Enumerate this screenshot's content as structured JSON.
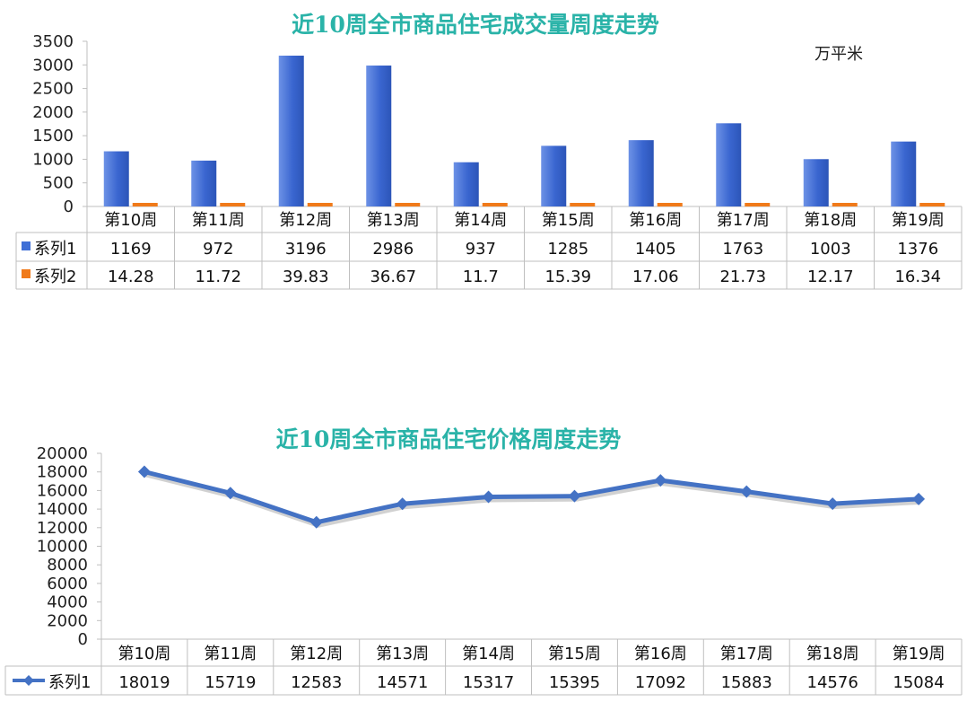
{
  "chart_data": [
    {
      "type": "bar",
      "title": "近10周全市商品住宅成交量周度走势",
      "unit": "万平米",
      "categories": [
        "第10周",
        "第11周",
        "第12周",
        "第13周",
        "第14周",
        "第15周",
        "第16周",
        "第17周",
        "第18周",
        "第19周"
      ],
      "yticks": [
        "0",
        "500",
        "1000",
        "1500",
        "2000",
        "2500",
        "3000",
        "3500"
      ],
      "ylim": [
        0,
        3500
      ],
      "series": [
        {
          "name": "系列1",
          "color": "#3f6fd6",
          "values": [
            1169,
            972,
            3196,
            2986,
            937,
            1285,
            1405,
            1763,
            1003,
            1376
          ],
          "labels": [
            "1169",
            "972",
            "3196",
            "2986",
            "937",
            "1285",
            "1405",
            "1763",
            "1003",
            "1376"
          ]
        },
        {
          "name": "系列2",
          "color": "#f07a1a",
          "values": [
            14.28,
            11.72,
            39.83,
            36.67,
            11.7,
            15.39,
            17.06,
            21.73,
            12.17,
            16.34
          ],
          "labels": [
            "14.28",
            "11.72",
            "39.83",
            "36.67",
            "11.7",
            "15.39",
            "17.06",
            "21.73",
            "12.17",
            "16.34"
          ]
        }
      ],
      "legend": "data-table"
    },
    {
      "type": "line",
      "title": "近10周全市商品住宅价格周度走势",
      "categories": [
        "第10周",
        "第11周",
        "第12周",
        "第13周",
        "第14周",
        "第15周",
        "第16周",
        "第17周",
        "第18周",
        "第19周"
      ],
      "yticks": [
        "0",
        "2000",
        "4000",
        "6000",
        "8000",
        "10000",
        "12000",
        "14000",
        "16000",
        "18000",
        "20000"
      ],
      "ylim": [
        0,
        20000
      ],
      "series": [
        {
          "name": "系列1",
          "color": "#4472c4",
          "values": [
            18019,
            15719,
            12583,
            14571,
            15317,
            15395,
            17092,
            15883,
            14576,
            15084
          ],
          "labels": [
            "18019",
            "15719",
            "12583",
            "14571",
            "15317",
            "15395",
            "17092",
            "15883",
            "14576",
            "15084"
          ]
        }
      ],
      "legend": "data-table"
    }
  ]
}
